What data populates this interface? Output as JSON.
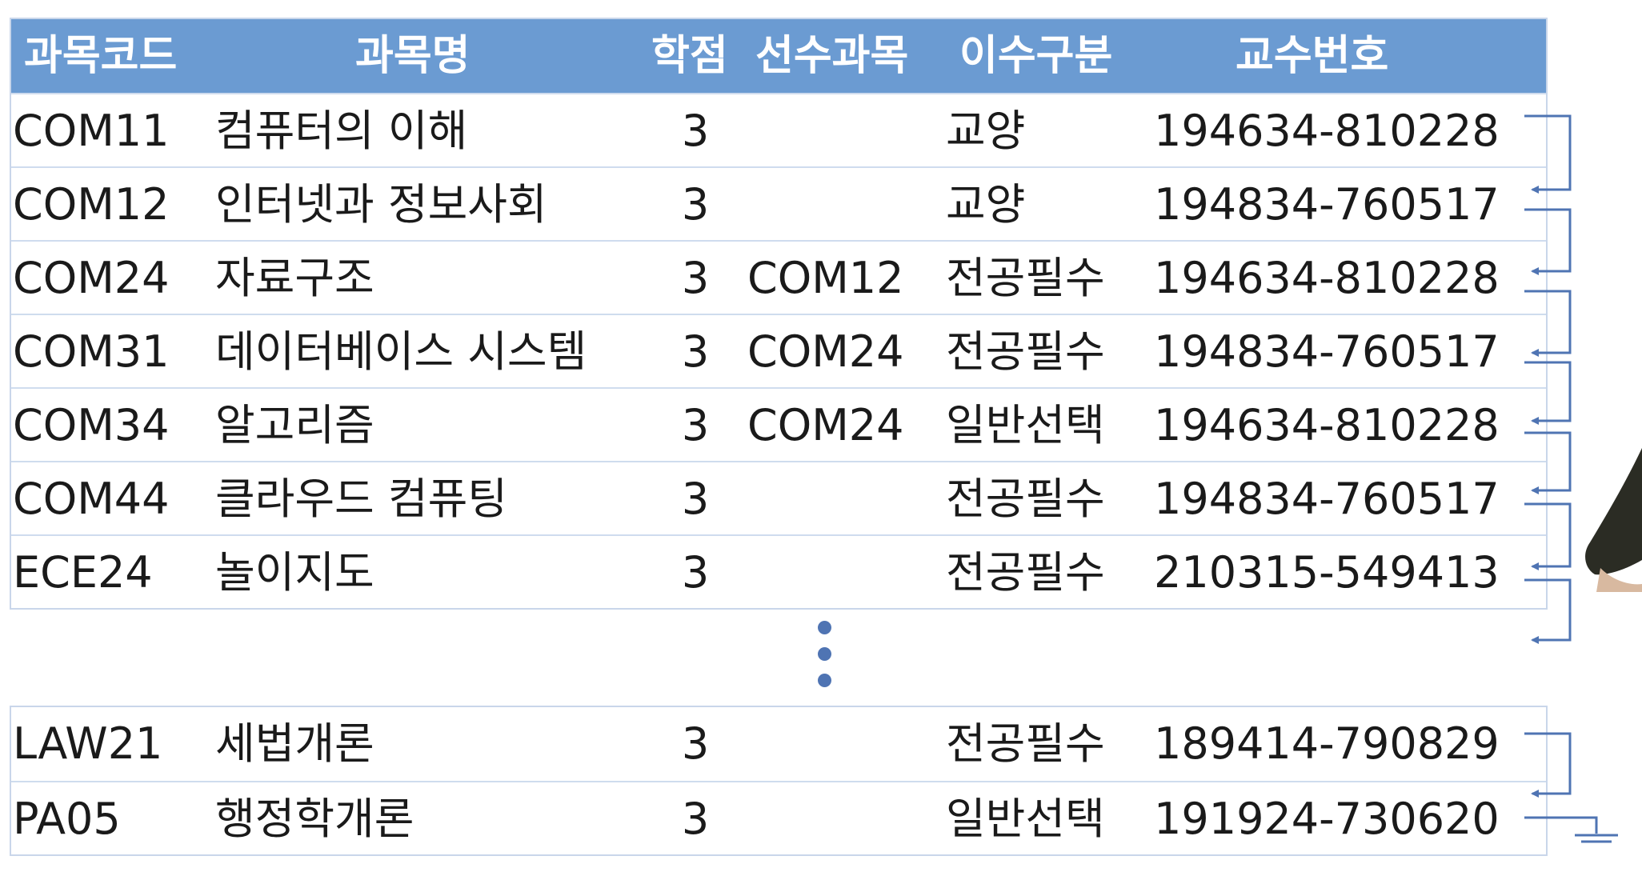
{
  "table": {
    "headers": {
      "code": "과목코드",
      "name": "과목명",
      "credit": "학점",
      "prereq": "선수과목",
      "type": "이수구분",
      "prof": "교수번호"
    },
    "rows_top": [
      {
        "code": "COM11",
        "name": "컴퓨터의 이해",
        "credit": "3",
        "prereq": "",
        "type": "교양",
        "prof": "194634-810228"
      },
      {
        "code": "COM12",
        "name": "인터넷과 정보사회",
        "credit": "3",
        "prereq": "",
        "type": "교양",
        "prof": "194834-760517"
      },
      {
        "code": "COM24",
        "name": "자료구조",
        "credit": "3",
        "prereq": "COM12",
        "type": "전공필수",
        "prof": "194634-810228"
      },
      {
        "code": "COM31",
        "name": "데이터베이스 시스템",
        "credit": "3",
        "prereq": "COM24",
        "type": "전공필수",
        "prof": "194834-760517"
      },
      {
        "code": "COM34",
        "name": "알고리즘",
        "credit": "3",
        "prereq": "COM24",
        "type": "일반선택",
        "prof": "194634-810228"
      },
      {
        "code": "COM44",
        "name": "클라우드 컴퓨팅",
        "credit": "3",
        "prereq": "",
        "type": "전공필수",
        "prof": "194834-760517"
      },
      {
        "code": "ECE24",
        "name": "놀이지도",
        "credit": "3",
        "prereq": "",
        "type": "전공필수",
        "prof": "210315-549413"
      }
    ],
    "rows_bottom": [
      {
        "code": "LAW21",
        "name": "세법개론",
        "credit": "3",
        "prereq": "",
        "type": "전공필수",
        "prof": "189414-790829"
      },
      {
        "code": "PA05",
        "name": "행정학개론",
        "credit": "3",
        "prereq": "",
        "type": "일반선택",
        "prof": "191924-730620"
      }
    ]
  },
  "colors": {
    "header_bg": "#6b9bd2",
    "row_border": "#cfdcee",
    "link_arrow": "#4f74b3",
    "ellipsis_dots": "#4f74b3"
  },
  "icons": {
    "ellipsis": "vertical-ellipsis-icon",
    "link_arrow": "linked-list-arrow-icon",
    "null_terminator": "ground-null-icon"
  }
}
